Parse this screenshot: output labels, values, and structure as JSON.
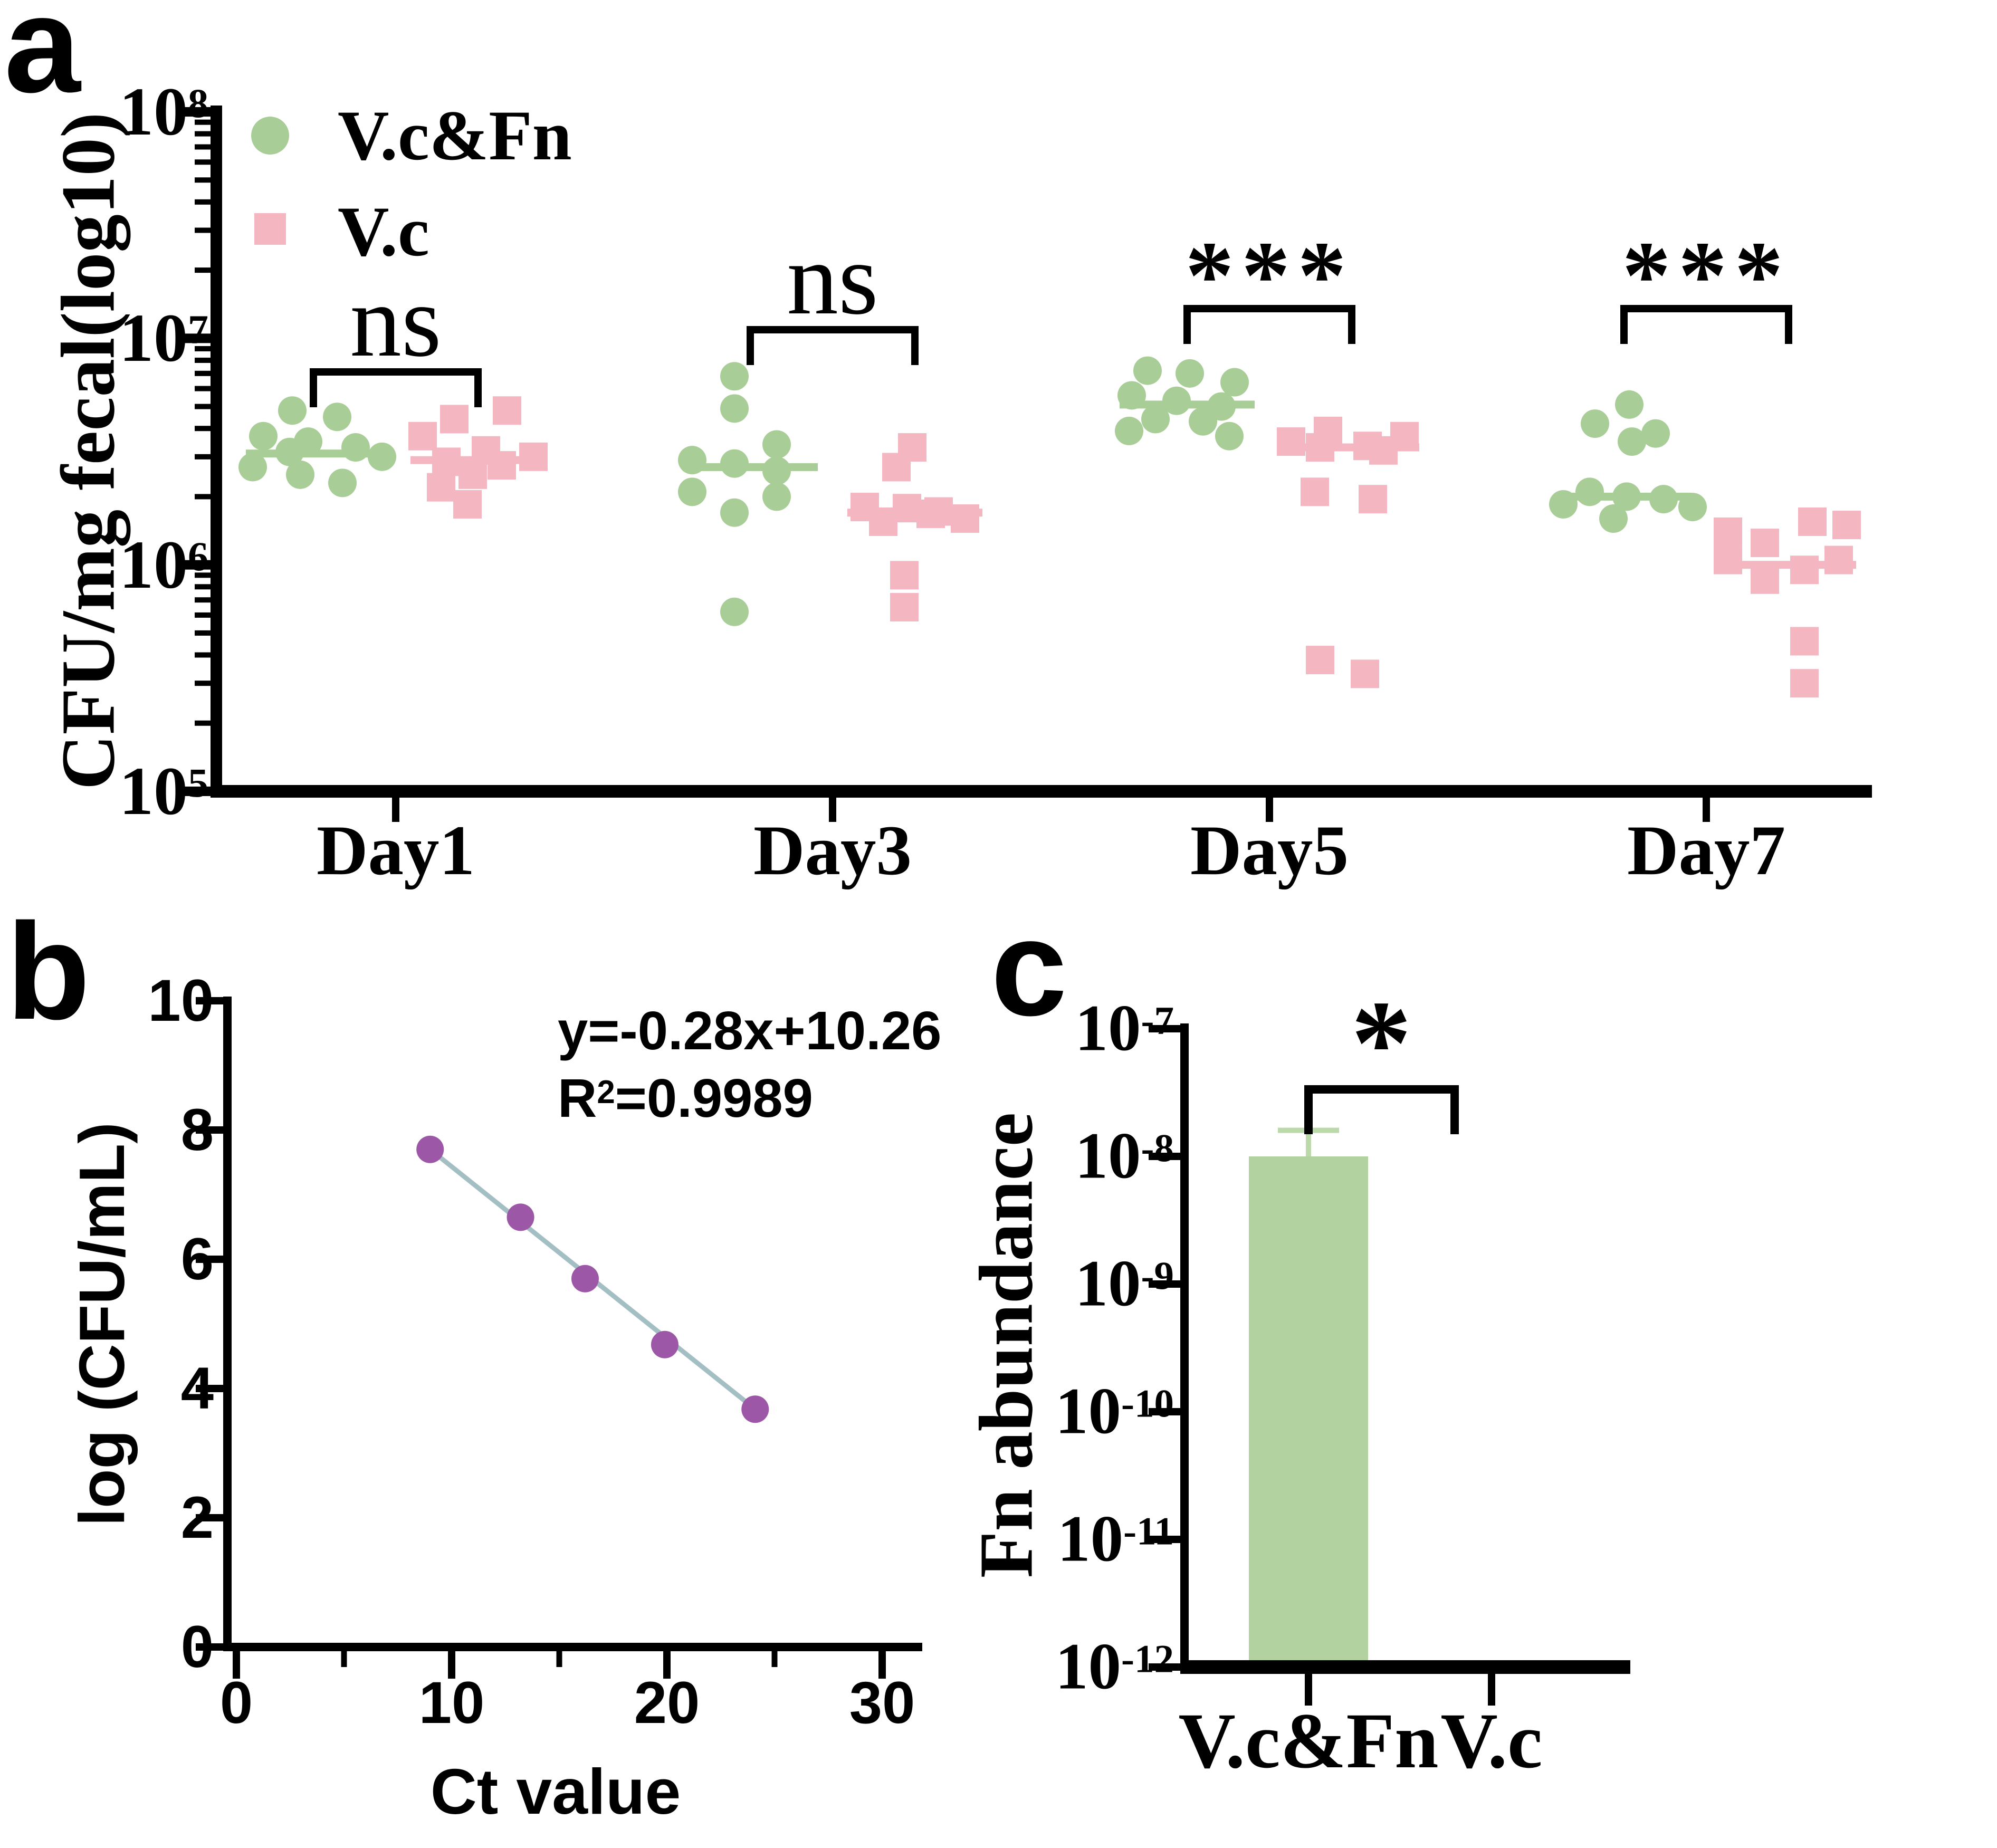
{
  "figure": {
    "panel_labels": [
      "a",
      "b",
      "c"
    ]
  },
  "colors": {
    "green": "#a9cd97",
    "pink": "#f4b7c2",
    "purple": "#9c58a6",
    "trend_line": "#a4bfc3",
    "bar_green": "#b2d3a0",
    "error_green": "#bcd9ab",
    "axis_black": "#000000"
  },
  "chart_data": [
    {
      "type": "scatter",
      "panel": "a",
      "ylabel": "CFU/mg fecal(log10)",
      "yscale": "log",
      "ylim": [
        100000,
        100000000
      ],
      "y_ticks": [
        {
          "base": "10",
          "exp": "8"
        },
        {
          "base": "10",
          "exp": "7"
        },
        {
          "base": "10",
          "exp": "6"
        },
        {
          "base": "10",
          "exp": "5"
        }
      ],
      "categories": [
        "Day1",
        "Day3",
        "Day5",
        "Day7"
      ],
      "significance": [
        "ns",
        "ns",
        "***",
        "***"
      ],
      "legend_position": "top-left",
      "series": [
        {
          "name": "V.c&Fn",
          "marker": "circle",
          "color": "#a9cd97",
          "points_by_day": [
            [
              [
                -40,
                4800000
              ],
              [
                45,
                4500000
              ],
              [
                -95,
                3700000
              ],
              [
                -10,
                3500000
              ],
              [
                80,
                3300000
              ],
              [
                -45,
                3150000
              ],
              [
                130,
                3000000
              ],
              [
                -115,
                2700000
              ],
              [
                -25,
                2500000
              ],
              [
                55,
                2300000
              ]
            ],
            [
              [
                -30,
                6800000
              ],
              [
                -30,
                4900000
              ],
              [
                50,
                3400000
              ],
              [
                -110,
                2900000
              ],
              [
                -30,
                2800000
              ],
              [
                50,
                2600000
              ],
              [
                -110,
                2100000
              ],
              [
                50,
                2000000
              ],
              [
                -30,
                1700000
              ],
              [
                -30,
                620000
              ]
            ],
            [
              [
                -75,
                7200000
              ],
              [
                5,
                7000000
              ],
              [
                90,
                6400000
              ],
              [
                -105,
                5600000
              ],
              [
                -20,
                5300000
              ],
              [
                65,
                5000000
              ],
              [
                -60,
                4400000
              ],
              [
                30,
                4300000
              ],
              [
                -110,
                3900000
              ],
              [
                80,
                3700000
              ]
            ],
            [
              [
                10,
                5100000
              ],
              [
                -55,
                4200000
              ],
              [
                60,
                3800000
              ],
              [
                15,
                3500000
              ],
              [
                -65,
                2100000
              ],
              [
                5,
                2000000
              ],
              [
                75,
                1950000
              ],
              [
                -115,
                1850000
              ],
              [
                130,
                1800000
              ],
              [
                -20,
                1600000
              ]
            ]
          ],
          "medians": [
            3100000,
            2700000,
            5100000,
            2000000
          ]
        },
        {
          "name": "V.c",
          "marker": "square",
          "color": "#f4b7c2",
          "points_by_day": [
            [
              [
                55,
                4800000
              ],
              [
                -45,
                4400000
              ],
              [
                -105,
                3700000
              ],
              [
                15,
                3200000
              ],
              [
                105,
                3000000
              ],
              [
                -60,
                2850000
              ],
              [
                45,
                2750000
              ],
              [
                -10,
                2500000
              ],
              [
                -70,
                2200000
              ],
              [
                -20,
                1850000
              ]
            ],
            [
              [
                -5,
                3300000
              ],
              [
                -35,
                2700000
              ],
              [
                -95,
                1800000
              ],
              [
                -15,
                1780000
              ],
              [
                45,
                1720000
              ],
              [
                30,
                1680000
              ],
              [
                95,
                1600000
              ],
              [
                -60,
                1550000
              ],
              [
                -20,
                900000
              ],
              [
                -20,
                650000
              ]
            ],
            [
              [
                -45,
                3900000
              ],
              [
                100,
                3700000
              ],
              [
                -115,
                3500000
              ],
              [
                30,
                3350000
              ],
              [
                -60,
                3300000
              ],
              [
                60,
                3200000
              ],
              [
                -70,
                2100000
              ],
              [
                40,
                1950000
              ],
              [
                -60,
                380000
              ],
              [
                25,
                330000
              ]
            ],
            [
              [
                45,
                1550000
              ],
              [
                110,
                1500000
              ],
              [
                -115,
                1400000
              ],
              [
                -45,
                1250000
              ],
              [
                -115,
                1050000
              ],
              [
                95,
                1050000
              ],
              [
                30,
                950000
              ],
              [
                -45,
                860000
              ],
              [
                30,
                460000
              ],
              [
                30,
                300000
              ]
            ]
          ],
          "medians": [
            2900000,
            1700000,
            3300000,
            1000000
          ]
        }
      ]
    },
    {
      "type": "scatter",
      "panel": "b",
      "xlabel": "Ct value",
      "ylabel": "log (CFU/mL)",
      "xlim": [
        0,
        30
      ],
      "ylim": [
        0,
        10
      ],
      "x_tick_labels": [
        "0",
        "10",
        "20",
        "30"
      ],
      "y_tick_labels": [
        "0",
        "2",
        "4",
        "6",
        "8",
        "10"
      ],
      "x": [
        9,
        13.2,
        16.2,
        19.9,
        24.1
      ],
      "y": [
        7.7,
        6.65,
        5.7,
        4.68,
        3.68
      ],
      "point_color": "#9c58a6",
      "line_color": "#a4bfc3",
      "annotation": {
        "equation": "y=-0.28x+10.26",
        "r2_prefix": "R",
        "r2_sup": "2",
        "r2_rest": "=0.9989"
      }
    },
    {
      "type": "bar",
      "panel": "c",
      "ylabel": "Fn abundance",
      "yscale": "log",
      "ylim": [
        1e-12,
        1e-07
      ],
      "y_ticks": [
        {
          "base": "10",
          "exp": "-7"
        },
        {
          "base": "10",
          "exp": "-8"
        },
        {
          "base": "10",
          "exp": "-9"
        },
        {
          "base": "10",
          "exp": "-10"
        },
        {
          "base": "10",
          "exp": "-11"
        },
        {
          "base": "10",
          "exp": "-12"
        }
      ],
      "categories": [
        "V.c&Fn",
        "V.c"
      ],
      "values": [
        1e-08,
        null
      ],
      "error_top": [
        1.6e-08,
        null
      ],
      "bar_color": "#b2d3a0",
      "error_color": "#bcd9ab",
      "significance": "*"
    }
  ]
}
